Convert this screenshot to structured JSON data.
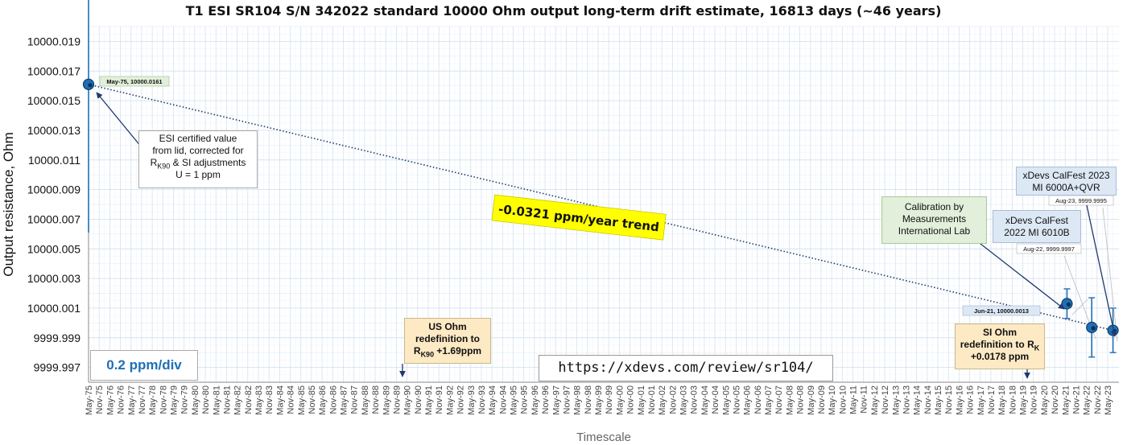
{
  "chart_data": {
    "type": "scatter",
    "title": "T1 ESI SR104 S/N 342022 standard 10000 Ohm output long-term drift estimate, 16813 days (~46 years)",
    "xlabel": "Timescale",
    "ylabel": "Output resistance, Ohm",
    "ylim": [
      9999.996,
      10000.02
    ],
    "yticks": [
      "10000.019",
      "10000.017",
      "10000.015",
      "10000.013",
      "10000.011",
      "10000.009",
      "10000.007",
      "10000.005",
      "10000.003",
      "10000.001",
      "9999.999",
      "9999.997"
    ],
    "ytick_values": [
      10000.019,
      10000.017,
      10000.015,
      10000.013,
      10000.011,
      10000.009,
      10000.007,
      10000.005,
      10000.003,
      10000.001,
      9999.999,
      9999.997
    ],
    "xticks": [
      "May-75",
      "Nov-75",
      "May-76",
      "Nov-76",
      "May-77",
      "Nov-77",
      "May-78",
      "Nov-78",
      "May-79",
      "Nov-79",
      "May-80",
      "Nov-80",
      "May-81",
      "Nov-81",
      "May-82",
      "Nov-82",
      "May-83",
      "Nov-83",
      "May-84",
      "Nov-84",
      "May-85",
      "Nov-85",
      "May-86",
      "Nov-86",
      "May-87",
      "Nov-87",
      "May-88",
      "Nov-88",
      "May-89",
      "Nov-89",
      "May-90",
      "Nov-90",
      "May-91",
      "Nov-91",
      "May-92",
      "Nov-92",
      "May-93",
      "Nov-93",
      "May-94",
      "Nov-94",
      "May-95",
      "Nov-95",
      "May-96",
      "Nov-96",
      "May-97",
      "Nov-97",
      "May-98",
      "Nov-98",
      "May-99",
      "Nov-99",
      "May-00",
      "Nov-00",
      "May-01",
      "Nov-01",
      "May-02",
      "Nov-02",
      "May-03",
      "Nov-03",
      "May-04",
      "Nov-04",
      "May-05",
      "Nov-05",
      "May-06",
      "Nov-06",
      "May-07",
      "Nov-07",
      "May-08",
      "Nov-08",
      "May-09",
      "Nov-09",
      "May-10",
      "Nov-10",
      "May-11",
      "Nov-11",
      "May-12",
      "Nov-12",
      "May-13",
      "Nov-13",
      "May-14",
      "Nov-14",
      "May-15",
      "Nov-15",
      "May-16",
      "Nov-16",
      "May-17",
      "Nov-17",
      "May-18",
      "Nov-18",
      "May-19",
      "Nov-19",
      "May-20",
      "Nov-20",
      "May-21",
      "Nov-21",
      "May-22",
      "Nov-22",
      "May-23"
    ],
    "grid": true,
    "points": [
      {
        "x": "May-75",
        "y": 10000.0161,
        "err_low": 10000.0061,
        "err_high": 10000.0261
      },
      {
        "x": "Jun-21",
        "y": 10000.0013,
        "err_low": 10000.0003,
        "err_high": 10000.0023
      },
      {
        "x": "Aug-22",
        "y": 9999.9997,
        "err_low": 9999.9977,
        "err_high": 10000.0017
      },
      {
        "x": "Aug-23",
        "y": 9999.9995,
        "err_low": 9999.998,
        "err_high": 10000.001
      }
    ],
    "point_labels": [
      "May-75, 10000.0161",
      "Jun-21, 10000.0013",
      "Aug-22, 9999.9997",
      "Aug-23, 9999.9995"
    ],
    "trend_label": "-0.0321 ppm/year trend",
    "colors": {
      "marker": "#1f6fb5",
      "trend": "#1f3a6b",
      "grid": "#d3e2f1",
      "highlight": "#ffff00"
    }
  },
  "annotations": {
    "esi": {
      "l1": "ESI certified value",
      "l2": "from lid, corrected for",
      "l3a": "R",
      "l3sub": "K90",
      "l3b": " & SI adjustments",
      "l4": "U = 1 ppm"
    },
    "us_ohm": {
      "l1": "US Ohm",
      "l2": "redefinition to",
      "l3a": "R",
      "l3sub": "K90",
      "l3b": " +1.69ppm"
    },
    "si_ohm": {
      "l1": "SI Ohm",
      "l2a": "redefinition to R",
      "l2sub": "K",
      "l3": "+0.0178 ppm"
    },
    "mil": {
      "l1": "Calibration by",
      "l2": "Measurements",
      "l3": "International Lab"
    },
    "calfest22": {
      "l1": "xDevs CalFest",
      "l2": "2022 MI 6010B"
    },
    "calfest23": {
      "l1": "xDevs CalFest 2023",
      "l2": "MI 6000A+QVR"
    },
    "scale": "0.2 ppm/div",
    "url": "https://xdevs.com/review/sr104/"
  }
}
